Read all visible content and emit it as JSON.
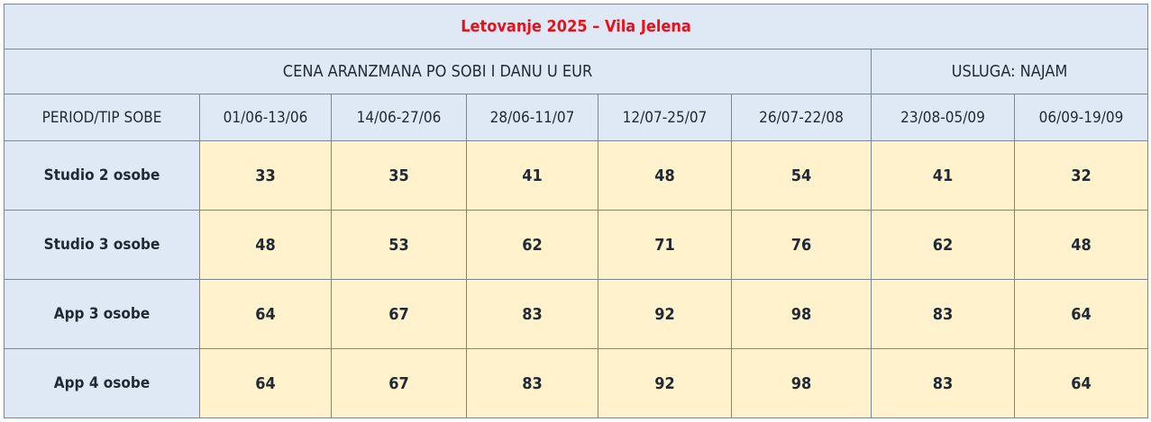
{
  "table": {
    "title": "Letovanje 2025 – Vila Jelena",
    "group_header_price": "CENA ARANZMANA PO SOBI I DANU U EUR",
    "group_header_service": "USLUGA: NAJAM",
    "row_header_label": "PERIOD/TIP SOBE",
    "periods": [
      "01/06-13/06",
      "14/06-27/06",
      "28/06-11/07",
      "12/07-25/07",
      "26/07-22/08",
      "23/08-05/09",
      "06/09-19/09"
    ],
    "rows": [
      {
        "label": "Studio 2 osobe",
        "values": [
          "33",
          "35",
          "41",
          "48",
          "54",
          "41",
          "32"
        ]
      },
      {
        "label": "Studio 3 osobe",
        "values": [
          "48",
          "53",
          "62",
          "71",
          "76",
          "62",
          "48"
        ]
      },
      {
        "label": "App 3 osobe",
        "values": [
          "64",
          "67",
          "83",
          "92",
          "98",
          "83",
          "64"
        ]
      },
      {
        "label": "App 4 osobe",
        "values": [
          "64",
          "67",
          "83",
          "92",
          "98",
          "83",
          "64"
        ]
      }
    ],
    "colors": {
      "title": "#e8101a",
      "header_bg": "#dfe9f5",
      "cell_bg": "#fff2cc",
      "border": "#7a8896"
    }
  }
}
